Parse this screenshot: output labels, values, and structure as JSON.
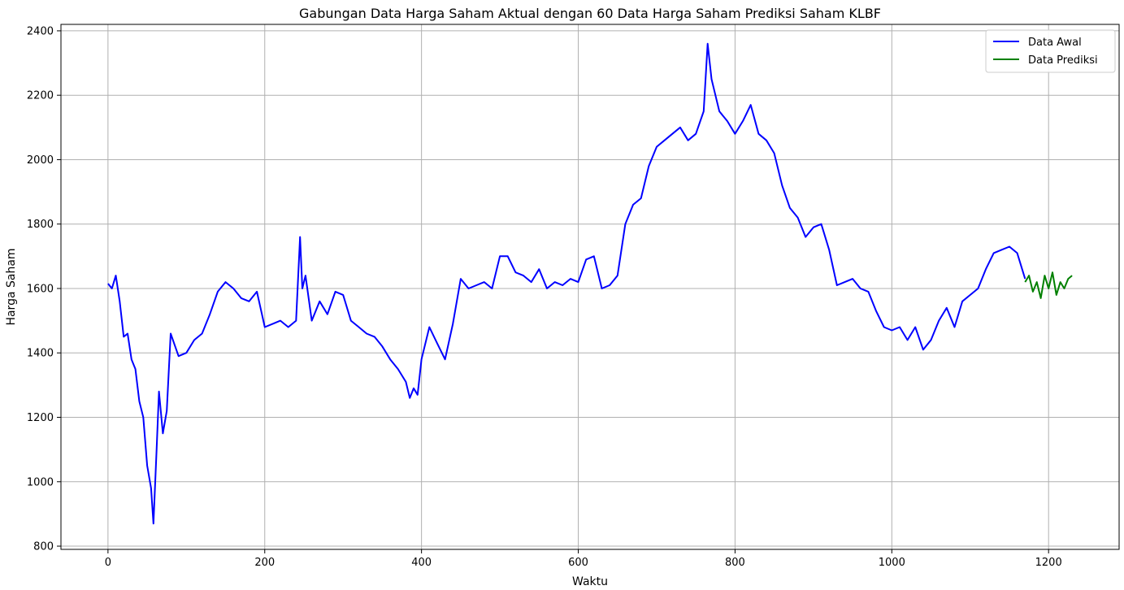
{
  "chart_data": {
    "type": "line",
    "title": "Gabungan Data Harga Saham Aktual dengan 60 Data Harga Saham Prediksi Saham KLBF",
    "xlabel": "Waktu",
    "ylabel": "Harga Saham",
    "xlim": [
      -60,
      1290
    ],
    "ylim": [
      790,
      2420
    ],
    "xticks": [
      0,
      200,
      400,
      600,
      800,
      1000,
      1200
    ],
    "yticks": [
      800,
      1000,
      1200,
      1400,
      1600,
      1800,
      2000,
      2200,
      2400
    ],
    "xtick_labels": [
      "0",
      "200",
      "400",
      "600",
      "800",
      "1000",
      "1200"
    ],
    "ytick_labels": [
      "800",
      "1000",
      "1200",
      "1400",
      "1600",
      "1800",
      "2000",
      "2200",
      "2400"
    ],
    "grid": true,
    "legend_position": "top-right",
    "series": [
      {
        "name": "Data Awal",
        "color": "#0000ff",
        "x": [
          0,
          5,
          10,
          15,
          20,
          25,
          30,
          35,
          40,
          45,
          50,
          55,
          58,
          62,
          65,
          70,
          75,
          80,
          90,
          100,
          110,
          120,
          130,
          140,
          150,
          160,
          170,
          180,
          190,
          200,
          210,
          220,
          230,
          240,
          245,
          248,
          252,
          260,
          270,
          280,
          290,
          300,
          310,
          320,
          330,
          340,
          350,
          360,
          370,
          380,
          385,
          390,
          395,
          400,
          410,
          420,
          430,
          440,
          450,
          460,
          470,
          480,
          490,
          500,
          510,
          520,
          530,
          540,
          550,
          560,
          570,
          580,
          590,
          600,
          610,
          620,
          630,
          640,
          650,
          660,
          670,
          680,
          690,
          700,
          710,
          720,
          730,
          740,
          750,
          760,
          765,
          770,
          780,
          790,
          800,
          810,
          820,
          830,
          840,
          850,
          860,
          870,
          880,
          890,
          900,
          910,
          920,
          930,
          940,
          950,
          960,
          970,
          980,
          990,
          1000,
          1010,
          1020,
          1030,
          1040,
          1050,
          1060,
          1070,
          1080,
          1090,
          1100,
          1110,
          1120,
          1130,
          1140,
          1150,
          1160,
          1170
        ],
        "values": [
          1615,
          1600,
          1640,
          1560,
          1450,
          1460,
          1380,
          1350,
          1250,
          1200,
          1050,
          980,
          870,
          1100,
          1280,
          1150,
          1220,
          1460,
          1390,
          1400,
          1440,
          1460,
          1520,
          1590,
          1620,
          1600,
          1570,
          1560,
          1590,
          1480,
          1490,
          1500,
          1480,
          1500,
          1760,
          1600,
          1640,
          1500,
          1560,
          1520,
          1590,
          1580,
          1500,
          1480,
          1460,
          1450,
          1420,
          1380,
          1350,
          1310,
          1260,
          1290,
          1270,
          1380,
          1480,
          1430,
          1380,
          1490,
          1630,
          1600,
          1610,
          1620,
          1600,
          1700,
          1700,
          1650,
          1640,
          1620,
          1660,
          1600,
          1620,
          1610,
          1630,
          1620,
          1690,
          1700,
          1600,
          1610,
          1640,
          1800,
          1860,
          1880,
          1980,
          2040,
          2060,
          2080,
          2100,
          2060,
          2080,
          2150,
          2360,
          2250,
          2150,
          2120,
          2080,
          2120,
          2170,
          2080,
          2060,
          2020,
          1920,
          1850,
          1820,
          1760,
          1790,
          1800,
          1720,
          1610,
          1620,
          1630,
          1600,
          1590,
          1530,
          1480,
          1470,
          1480,
          1440,
          1480,
          1410,
          1440,
          1500,
          1540,
          1480,
          1560,
          1580,
          1600,
          1660,
          1710,
          1720,
          1730,
          1710,
          1630
        ]
      },
      {
        "name": "Data Prediksi",
        "color": "#008000",
        "x": [
          1170,
          1175,
          1180,
          1185,
          1190,
          1195,
          1200,
          1205,
          1210,
          1215,
          1220,
          1225,
          1230
        ],
        "values": [
          1620,
          1640,
          1590,
          1620,
          1570,
          1640,
          1600,
          1650,
          1580,
          1620,
          1600,
          1630,
          1640
        ]
      }
    ]
  }
}
